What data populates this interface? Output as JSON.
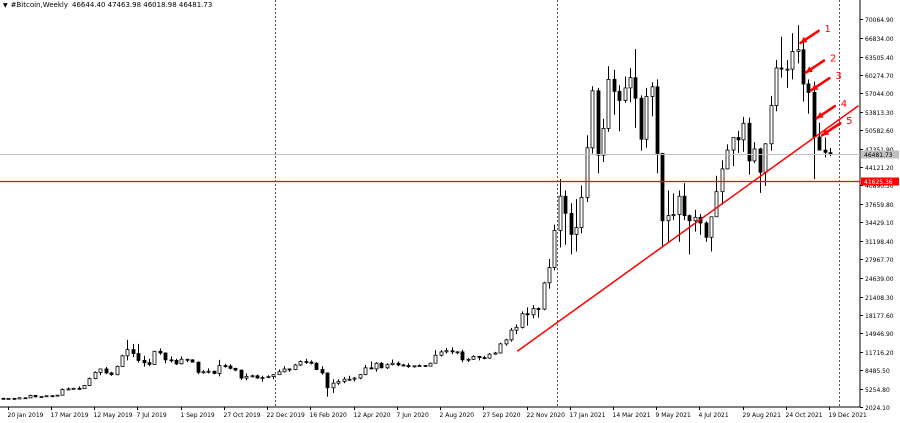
{
  "header": {
    "symbol": "#Bitcoin,Weekly",
    "ohlc": "46644.40 47463.98 46018.98 46481.73"
  },
  "chart_data": {
    "type": "candlestick",
    "title": "",
    "ylim": [
      2024.6,
      72550
    ],
    "y_ticks": [
      "70064.90",
      "66834.00",
      "63505.40",
      "60274.70",
      "57044.00",
      "53813.30",
      "50582.60",
      "47351.90",
      "44121.20",
      "40890.50",
      "37659.80",
      "34429.10",
      "31198.40",
      "27967.70",
      "24639.00",
      "21408.30",
      "18177.60",
      "14946.90",
      "11716.20",
      "8485.50",
      "5254.80",
      "2024.10"
    ],
    "x_ticks": [
      "20 Jan 2019",
      "17 Mar 2019",
      "12 May 2019",
      "7 Jul 2019",
      "1 Sep 2019",
      "27 Oct 2019",
      "22 Dec 2019",
      "16 Feb 2020",
      "12 Apr 2020",
      "7 Jun 2020",
      "2 Aug 2020",
      "27 Sep 2020",
      "22 Nov 2020",
      "17 Jan 2021",
      "14 Mar 2021",
      "9 May 2021",
      "4 Jul 2021",
      "29 Aug 2021",
      "24 Oct 2021",
      "19 Dec 2021"
    ],
    "current_price_label": "46481.73",
    "horizontal_level": {
      "value": 41625.36,
      "label": "41625.36",
      "color": "#ff0000"
    },
    "trendline": {
      "from": {
        "date": "2020-11-10",
        "price": 11800
      },
      "to": {
        "date": "2022-01-26",
        "price": 54900
      },
      "color": "#ff0000"
    },
    "period_separators": [
      "2020-01-01",
      "2021-01-01",
      "2022-01-01"
    ],
    "annotations": [
      {
        "label": "1",
        "date": "2021-11-08",
        "price": 65900
      },
      {
        "label": "2",
        "date": "2021-11-15",
        "price": 60700
      },
      {
        "label": "3",
        "date": "2021-11-22",
        "price": 57600
      },
      {
        "label": "4",
        "date": "2021-11-29",
        "price": 52700
      },
      {
        "label": "5",
        "date": "2021-12-06",
        "price": 49700
      }
    ],
    "candles": [
      [
        "2019-01-14",
        3550,
        3600,
        3480,
        3520
      ],
      [
        "2019-01-21",
        3520,
        3580,
        3470,
        3540
      ],
      [
        "2019-01-28",
        3540,
        3600,
        3350,
        3440
      ],
      [
        "2019-02-04",
        3440,
        3700,
        3400,
        3650
      ],
      [
        "2019-02-11",
        3650,
        3700,
        3550,
        3620
      ],
      [
        "2019-02-18",
        3620,
        4200,
        3600,
        4050
      ],
      [
        "2019-02-25",
        4050,
        4150,
        3700,
        3820
      ],
      [
        "2019-03-04",
        3820,
        3950,
        3700,
        3870
      ],
      [
        "2019-03-11",
        3870,
        4050,
        3800,
        4000
      ],
      [
        "2019-03-18",
        4000,
        4100,
        3900,
        3990
      ],
      [
        "2019-03-25",
        3990,
        4150,
        3950,
        4100
      ],
      [
        "2019-04-01",
        4100,
        5300,
        4050,
        5100
      ],
      [
        "2019-04-08",
        5100,
        5450,
        4950,
        5200
      ],
      [
        "2019-04-15",
        5200,
        5400,
        5100,
        5300
      ],
      [
        "2019-04-22",
        5300,
        5650,
        5050,
        5250
      ],
      [
        "2019-04-29",
        5250,
        5900,
        5200,
        5800
      ],
      [
        "2019-05-06",
        5800,
        7200,
        5700,
        7000
      ],
      [
        "2019-05-13",
        7000,
        8300,
        6900,
        8100
      ],
      [
        "2019-05-20",
        8100,
        8700,
        7600,
        8700
      ],
      [
        "2019-05-27",
        8700,
        9050,
        7800,
        8000
      ],
      [
        "2019-06-03",
        8000,
        8200,
        7500,
        7700
      ],
      [
        "2019-06-10",
        7700,
        9300,
        7600,
        9150
      ],
      [
        "2019-06-17",
        9150,
        11200,
        9100,
        11000
      ],
      [
        "2019-06-24",
        11000,
        13800,
        10200,
        12100
      ],
      [
        "2019-07-01",
        12100,
        13100,
        10800,
        11400
      ],
      [
        "2019-07-08",
        11400,
        13100,
        9800,
        10200
      ],
      [
        "2019-07-15",
        10200,
        11000,
        9100,
        9800
      ],
      [
        "2019-07-22",
        9800,
        10500,
        9200,
        9500
      ],
      [
        "2019-07-29",
        9500,
        11900,
        9400,
        11800
      ],
      [
        "2019-08-05",
        11800,
        12300,
        11200,
        11500
      ],
      [
        "2019-08-12",
        11500,
        11600,
        9700,
        10300
      ],
      [
        "2019-08-19",
        10300,
        10900,
        9800,
        10200
      ],
      [
        "2019-08-26",
        10200,
        10500,
        9400,
        9600
      ],
      [
        "2019-09-02",
        9600,
        10900,
        9500,
        10400
      ],
      [
        "2019-09-09",
        10400,
        10500,
        9900,
        10300
      ],
      [
        "2019-09-16",
        10300,
        10400,
        9800,
        9900
      ],
      [
        "2019-09-23",
        9900,
        10000,
        7800,
        8100
      ],
      [
        "2019-09-30",
        8100,
        8500,
        7900,
        8200
      ],
      [
        "2019-10-07",
        8200,
        8800,
        7900,
        8300
      ],
      [
        "2019-10-14",
        8300,
        8400,
        7800,
        7900
      ],
      [
        "2019-10-21",
        7900,
        10300,
        7400,
        9300
      ],
      [
        "2019-10-28",
        9300,
        9600,
        8900,
        9200
      ],
      [
        "2019-11-04",
        9200,
        9500,
        8600,
        8800
      ],
      [
        "2019-11-11",
        8800,
        8900,
        8300,
        8500
      ],
      [
        "2019-11-18",
        8500,
        8550,
        6800,
        7100
      ],
      [
        "2019-11-25",
        7100,
        7900,
        6700,
        7400
      ],
      [
        "2019-12-02",
        7400,
        7700,
        7200,
        7500
      ],
      [
        "2019-12-09",
        7500,
        7700,
        7000,
        7100
      ],
      [
        "2019-12-16",
        7100,
        7500,
        6450,
        7200
      ],
      [
        "2019-12-23",
        7200,
        7600,
        7100,
        7350
      ],
      [
        "2019-12-30",
        7350,
        7800,
        6900,
        7700
      ],
      [
        "2020-01-06",
        7700,
        8600,
        7650,
        8200
      ],
      [
        "2020-01-13",
        8200,
        9200,
        8100,
        8700
      ],
      [
        "2020-01-20",
        8700,
        8800,
        8200,
        8600
      ],
      [
        "2020-01-27",
        8600,
        9600,
        8500,
        9400
      ],
      [
        "2020-02-03",
        9400,
        10200,
        9200,
        10000
      ],
      [
        "2020-02-10",
        10000,
        10500,
        9600,
        9900
      ],
      [
        "2020-02-17",
        9900,
        10200,
        9500,
        9700
      ],
      [
        "2020-02-24",
        9700,
        9900,
        8500,
        8600
      ],
      [
        "2020-03-02",
        8600,
        9200,
        7700,
        8000
      ],
      [
        "2020-03-09",
        8000,
        8100,
        3850,
        5400
      ],
      [
        "2020-03-16",
        5400,
        6900,
        4500,
        6200
      ],
      [
        "2020-03-23",
        6200,
        6900,
        5900,
        6500
      ],
      [
        "2020-03-30",
        6500,
        7300,
        6200,
        6900
      ],
      [
        "2020-04-06",
        6900,
        7500,
        6600,
        6900
      ],
      [
        "2020-04-13",
        6900,
        7300,
        6500,
        7100
      ],
      [
        "2020-04-20",
        7100,
        7800,
        6900,
        7700
      ],
      [
        "2020-04-27",
        7700,
        9400,
        7600,
        8900
      ],
      [
        "2020-05-04",
        8900,
        10000,
        8700,
        8700
      ],
      [
        "2020-05-11",
        8700,
        9900,
        8200,
        9700
      ],
      [
        "2020-05-18",
        9700,
        9900,
        8800,
        8900
      ],
      [
        "2020-05-25",
        8900,
        9700,
        8700,
        9450
      ],
      [
        "2020-06-01",
        9450,
        10350,
        9300,
        9700
      ],
      [
        "2020-06-08",
        9700,
        10000,
        9200,
        9400
      ],
      [
        "2020-06-15",
        9400,
        9600,
        9200,
        9300
      ],
      [
        "2020-06-22",
        9300,
        9700,
        8900,
        9100
      ],
      [
        "2020-06-29",
        9100,
        9300,
        8900,
        9250
      ],
      [
        "2020-07-06",
        9250,
        9500,
        9050,
        9300
      ],
      [
        "2020-07-13",
        9300,
        9400,
        9100,
        9200
      ],
      [
        "2020-07-20",
        9200,
        9800,
        9150,
        9700
      ],
      [
        "2020-07-27",
        9700,
        12000,
        9700,
        11100
      ],
      [
        "2020-08-03",
        11100,
        12000,
        10900,
        11700
      ],
      [
        "2020-08-10",
        11700,
        12400,
        11400,
        11900
      ],
      [
        "2020-08-17",
        11900,
        12500,
        11300,
        11700
      ],
      [
        "2020-08-24",
        11700,
        11800,
        11300,
        11700
      ],
      [
        "2020-08-31",
        11700,
        12100,
        9900,
        10300
      ],
      [
        "2020-09-07",
        10300,
        10600,
        9900,
        10400
      ],
      [
        "2020-09-14",
        10400,
        11100,
        10300,
        10900
      ],
      [
        "2020-09-21",
        10900,
        11000,
        10200,
        10700
      ],
      [
        "2020-09-28",
        10700,
        11000,
        10400,
        10600
      ],
      [
        "2020-10-05",
        10600,
        11500,
        10500,
        11300
      ],
      [
        "2020-10-12",
        11300,
        11700,
        11200,
        11500
      ],
      [
        "2020-10-19",
        11500,
        13300,
        11400,
        13100
      ],
      [
        "2020-10-26",
        13100,
        14000,
        12800,
        13800
      ],
      [
        "2020-11-02",
        13800,
        15900,
        13500,
        15500
      ],
      [
        "2020-11-09",
        15500,
        16500,
        14800,
        16000
      ],
      [
        "2020-11-16",
        16000,
        18800,
        15800,
        18400
      ],
      [
        "2020-11-23",
        18400,
        19500,
        16300,
        18200
      ],
      [
        "2020-11-30",
        18200,
        19900,
        17600,
        19300
      ],
      [
        "2020-12-07",
        19300,
        19500,
        17700,
        19200
      ],
      [
        "2020-12-14",
        19200,
        24000,
        19000,
        23800
      ],
      [
        "2020-12-21",
        23800,
        28000,
        22800,
        26500
      ],
      [
        "2020-12-28",
        26500,
        34000,
        26000,
        33000
      ],
      [
        "2021-01-04",
        33000,
        42000,
        30000,
        39000
      ],
      [
        "2021-01-11",
        39000,
        40000,
        30500,
        36000
      ],
      [
        "2021-01-18",
        36000,
        37800,
        28800,
        32300
      ],
      [
        "2021-01-25",
        32300,
        38500,
        29300,
        33500
      ],
      [
        "2021-02-01",
        33500,
        40900,
        32500,
        38800
      ],
      [
        "2021-02-08",
        38800,
        49700,
        38000,
        47500
      ],
      [
        "2021-02-15",
        47500,
        58300,
        46500,
        57500
      ],
      [
        "2021-02-22",
        57500,
        58000,
        43000,
        46200
      ],
      [
        "2021-03-01",
        46200,
        52600,
        45000,
        50900
      ],
      [
        "2021-03-08",
        50900,
        61800,
        50300,
        59500
      ],
      [
        "2021-03-15",
        59500,
        61200,
        53300,
        57400
      ],
      [
        "2021-03-22",
        57400,
        58500,
        50400,
        55800
      ],
      [
        "2021-03-29",
        55800,
        60000,
        55400,
        58000
      ],
      [
        "2021-04-05",
        58000,
        61500,
        55500,
        59800
      ],
      [
        "2021-04-12",
        59800,
        64800,
        51000,
        56200
      ],
      [
        "2021-04-19",
        56200,
        56700,
        47000,
        49000
      ],
      [
        "2021-04-26",
        49000,
        58000,
        47500,
        56500
      ],
      [
        "2021-05-03",
        56500,
        59000,
        53000,
        58200
      ],
      [
        "2021-05-10",
        58200,
        59500,
        43000,
        46500
      ],
      [
        "2021-05-17",
        46500,
        46600,
        30000,
        34700
      ],
      [
        "2021-05-24",
        34700,
        40000,
        31000,
        35600
      ],
      [
        "2021-05-31",
        35600,
        39500,
        34800,
        35800
      ],
      [
        "2021-06-07",
        35800,
        40000,
        31000,
        39000
      ],
      [
        "2021-06-14",
        39000,
        41300,
        34800,
        35600
      ],
      [
        "2021-06-21",
        35600,
        35800,
        28800,
        34700
      ],
      [
        "2021-06-28",
        34700,
        36600,
        32800,
        35300
      ],
      [
        "2021-07-05",
        35300,
        35900,
        32200,
        34300
      ],
      [
        "2021-07-12",
        34300,
        34600,
        31000,
        31800
      ],
      [
        "2021-07-19",
        31800,
        35400,
        29300,
        35400
      ],
      [
        "2021-07-26",
        35400,
        42600,
        35400,
        39800
      ],
      [
        "2021-08-02",
        39800,
        45300,
        37500,
        43800
      ],
      [
        "2021-08-09",
        43800,
        48100,
        43700,
        47100
      ],
      [
        "2021-08-16",
        47100,
        49300,
        44300,
        49300
      ],
      [
        "2021-08-23",
        49300,
        50500,
        46600,
        48900
      ],
      [
        "2021-08-30",
        48900,
        52900,
        46800,
        51800
      ],
      [
        "2021-09-06",
        51800,
        52800,
        42800,
        45200
      ],
      [
        "2021-09-13",
        45200,
        48500,
        44800,
        47300
      ],
      [
        "2021-09-20",
        47300,
        47500,
        39600,
        43200
      ],
      [
        "2021-09-27",
        43200,
        48300,
        40800,
        48200
      ],
      [
        "2021-10-04",
        48200,
        56600,
        47000,
        54900
      ],
      [
        "2021-10-11",
        54900,
        62900,
        53900,
        61500
      ],
      [
        "2021-10-18",
        61500,
        67000,
        59800,
        61300
      ],
      [
        "2021-10-25",
        61300,
        62900,
        58000,
        61300
      ],
      [
        "2021-11-01",
        61300,
        67600,
        59500,
        64400
      ],
      [
        "2021-11-08",
        64400,
        69000,
        62300,
        64700
      ],
      [
        "2021-11-15",
        64700,
        66200,
        55600,
        58700
      ],
      [
        "2021-11-22",
        58700,
        59500,
        53500,
        57200
      ],
      [
        "2021-11-29",
        57200,
        59100,
        42000,
        49400
      ],
      [
        "2021-12-06",
        49400,
        51900,
        47100,
        47100
      ],
      [
        "2021-12-13",
        47100,
        49300,
        45800,
        46700
      ],
      [
        "2021-12-20",
        46644.4,
        47463.98,
        46018.98,
        46481.73
      ]
    ]
  }
}
